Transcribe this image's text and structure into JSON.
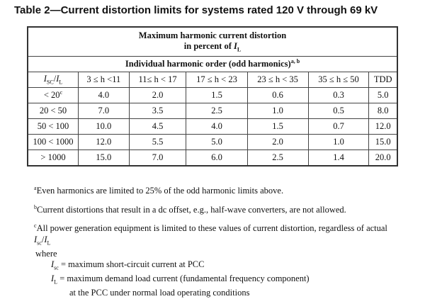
{
  "title": "Table 2—Current distortion limits for systems rated 120 V through 69 kV",
  "table": {
    "header1": [
      "Maximum harmonic current distortion",
      "in percent of ",
      "I",
      "L"
    ],
    "header2": [
      "Individual harmonic order (odd harmonics)",
      "a, b"
    ],
    "corner": [
      "I",
      "SC",
      "/",
      "I",
      "L"
    ],
    "columns": [
      "3 ≤ h <11",
      "11≤ h < 17",
      "17 ≤ h < 23",
      "23 ≤ h < 35",
      "35 ≤ h ≤ 50",
      "TDD"
    ],
    "rows": [
      {
        "label": [
          "< 20",
          "c"
        ],
        "cells": [
          "4.0",
          "2.0",
          "1.5",
          "0.6",
          "0.3",
          "5.0"
        ]
      },
      {
        "label": [
          "20 < 50"
        ],
        "cells": [
          "7.0",
          "3.5",
          "2.5",
          "1.0",
          "0.5",
          "8.0"
        ]
      },
      {
        "label": [
          "50 < 100"
        ],
        "cells": [
          "10.0",
          "4.5",
          "4.0",
          "1.5",
          "0.7",
          "12.0"
        ]
      },
      {
        "label": [
          "100 < 1000"
        ],
        "cells": [
          "12.0",
          "5.5",
          "5.0",
          "2.0",
          "1.0",
          "15.0"
        ]
      },
      {
        "label": [
          "> 1000"
        ],
        "cells": [
          "15.0",
          "7.0",
          "6.0",
          "2.5",
          "1.4",
          "20.0"
        ]
      }
    ]
  },
  "notes": {
    "a": [
      "a",
      "Even harmonics are limited to 25% of the odd harmonic limits above."
    ],
    "b": [
      "b",
      "Current distortions that result in a dc offset, e.g., half-wave converters, are not allowed."
    ],
    "c": [
      "c",
      "All power generation equipment is limited to these values of current distortion, regardless of actual ",
      "I",
      "sc",
      "/",
      "I",
      "L"
    ],
    "where": "where",
    "defs": [
      [
        "I",
        "sc",
        " = maximum short-circuit current at PCC"
      ],
      [
        "I",
        "L",
        " = maximum demand load current (fundamental frequency component)"
      ]
    ],
    "defs_cont": "at the PCC under normal load operating conditions"
  }
}
